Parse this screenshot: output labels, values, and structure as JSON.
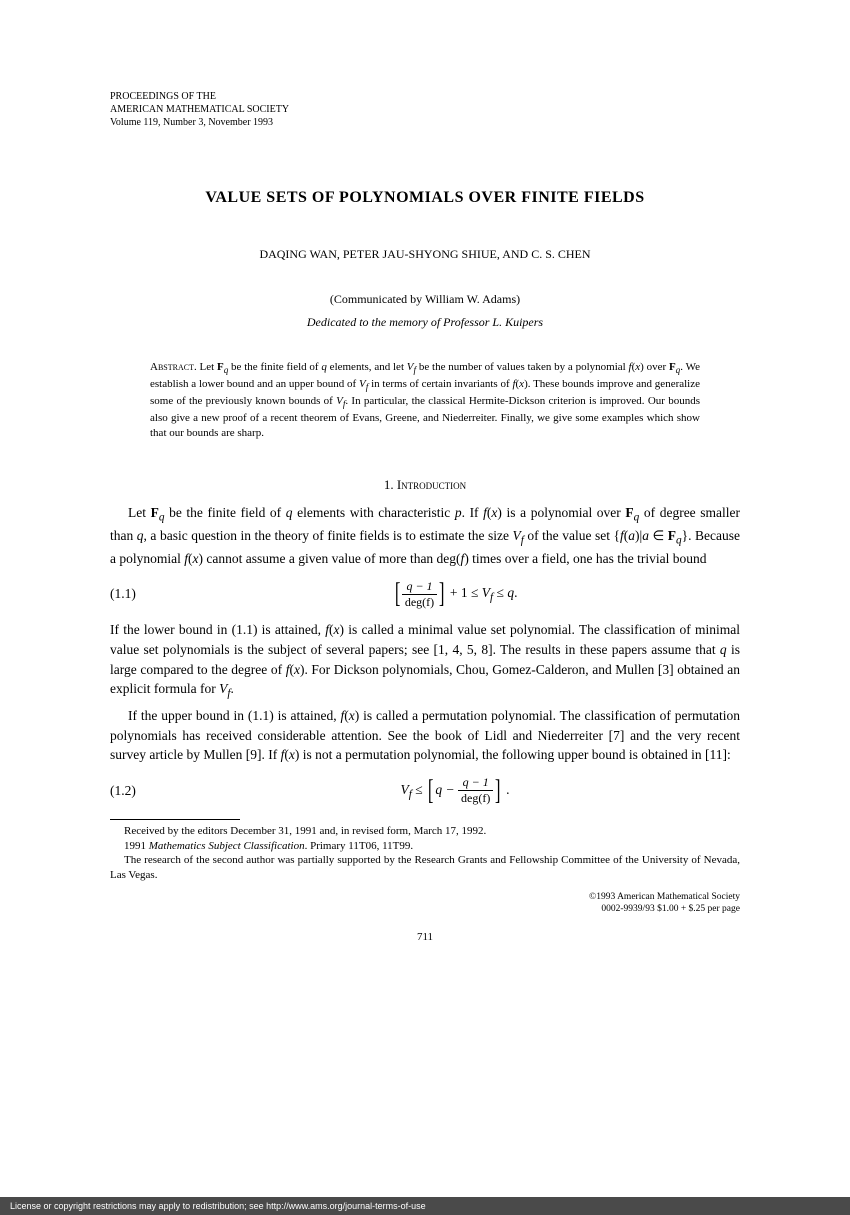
{
  "header": {
    "line1": "PROCEEDINGS OF THE",
    "line2": "AMERICAN MATHEMATICAL SOCIETY",
    "line3": "Volume 119, Number 3, November 1993"
  },
  "title": "VALUE SETS OF POLYNOMIALS OVER FINITE FIELDS",
  "authors": "DAQING WAN, PETER JAU-SHYONG SHIUE, AND C. S. CHEN",
  "communicated": "(Communicated by William W. Adams)",
  "dedication": "Dedicated to the memory of Professor L. Kuipers",
  "abstract": {
    "label": "Abstract.",
    "text_html": "Let <b>F</b><sub><i>q</i></sub> be the finite field of <i>q</i> elements, and let <i>V<sub>f</sub></i> be the number of values taken by a polynomial <i>f</i>(<i>x</i>) over <b>F</b><sub><i>q</i></sub>. We establish a lower bound and an upper bound of <i>V<sub>f</sub></i> in terms of certain invariants of <i>f</i>(<i>x</i>). These bounds improve and generalize some of the previously known bounds of <i>V<sub>f</sub></i>. In particular, the classical Hermite-Dickson criterion is improved. Our bounds also give a new proof of a recent theorem of Evans, Greene, and Niederreiter. Finally, we give some examples which show that our bounds are sharp."
  },
  "section1": {
    "heading": "1. Introduction",
    "para1_html": "Let <b>F</b><sub><i>q</i></sub> be the finite field of <i>q</i> elements with characteristic <i>p</i>. If <i>f</i>(<i>x</i>) is a polynomial over <b>F</b><sub><i>q</i></sub> of degree smaller than <i>q</i>, a basic question in the theory of finite fields is to estimate the size <i>V<sub>f</sub></i> of the value set {<i>f</i>(<i>a</i>)|<i>a</i> &isin; <b>F</b><sub><i>q</i></sub>}. Because a polynomial <i>f</i>(<i>x</i>) cannot assume a given value of more than deg(<i>f</i>) times over a field, one has the trivial bound",
    "eq1_number": "(1.1)",
    "para2_html": "If the lower bound in (1.1) is attained, <i>f</i>(<i>x</i>) is called a minimal value set polynomial. The classification of minimal value set polynomials is the subject of several papers; see [1, 4, 5, 8]. The results in these papers assume that <i>q</i> is large compared to the degree of <i>f</i>(<i>x</i>). For Dickson polynomials, Chou, Gomez-Calderon, and Mullen [3] obtained an explicit formula for <i>V<sub>f</sub></i>.",
    "para3_html": "If the upper bound in (1.1) is attained, <i>f</i>(<i>x</i>) is called a permutation polynomial. The classification of permutation polynomials has received considerable attention. See the book of Lidl and Niederreiter [7] and the very recent survey article by Mullen [9]. If <i>f</i>(<i>x</i>) is not a permutation polynomial, the following upper bound is obtained in [11]:",
    "eq2_number": "(1.2)"
  },
  "footnotes": {
    "f1": "Received by the editors December 31, 1991 and, in revised form, March 17, 1992.",
    "f2_html": "1991 <i>Mathematics Subject Classification</i>. Primary 11T06, 11T99.",
    "f3": "The research of the second author was partially supported by the Research Grants and Fellowship Committee of the University of Nevada, Las Vegas."
  },
  "copyright": {
    "line1": "©1993 American Mathematical Society",
    "line2": "0002-9939/93 $1.00 + $.25 per page"
  },
  "page_number": "711",
  "license_bar": "License or copyright restrictions may apply to redistribution; see http://www.ams.org/journal-terms-of-use",
  "equations": {
    "eq1": {
      "frac_num": "q − 1",
      "frac_den": "deg(f)",
      "tail_html": " + 1 ≤ <i>V<sub>f</sub></i> ≤ <i>q</i>."
    },
    "eq2": {
      "lead_html": "<i>V<sub>f</sub></i> ≤ ",
      "inner_lead": "q − ",
      "frac_num": "q − 1",
      "frac_den": "deg(f)",
      "tail": " ."
    }
  }
}
